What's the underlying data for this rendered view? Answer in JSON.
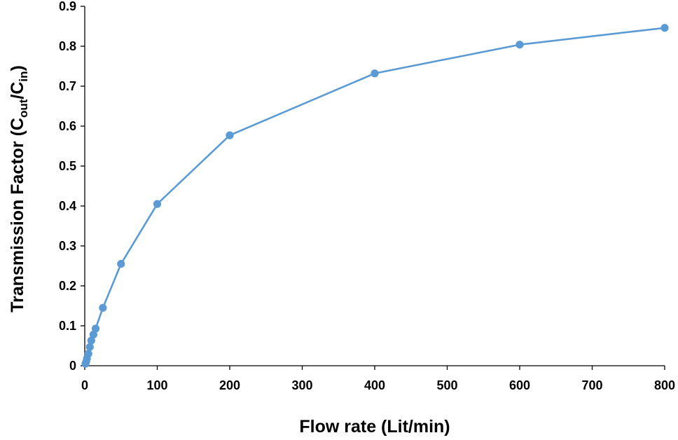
{
  "chart_data": {
    "type": "line",
    "title": "",
    "xlabel": "Flow rate (Lit/min)",
    "ylabel": {
      "main": "Transmission Factor (C",
      "sub1": "out",
      "mid": "/C",
      "sub2": "in",
      "end": ")"
    },
    "xlim": [
      0,
      800
    ],
    "ylim": [
      0,
      0.9
    ],
    "x_ticks": [
      0,
      100,
      200,
      300,
      400,
      500,
      600,
      700,
      800
    ],
    "y_ticks": [
      0,
      0.1,
      0.2,
      0.3,
      0.4,
      0.5,
      0.6,
      0.7,
      0.8,
      0.9
    ],
    "grid": false,
    "legend": "none",
    "series": [
      {
        "color": "#5B9BD5",
        "marker": "circle",
        "x": [
          1,
          2,
          3,
          5,
          7,
          9,
          12,
          15,
          25,
          50,
          100,
          200,
          400,
          600,
          800
        ],
        "y": [
          0.005,
          0.01,
          0.018,
          0.03,
          0.047,
          0.063,
          0.078,
          0.093,
          0.145,
          0.255,
          0.405,
          0.577,
          0.732,
          0.804,
          0.846
        ]
      }
    ]
  }
}
